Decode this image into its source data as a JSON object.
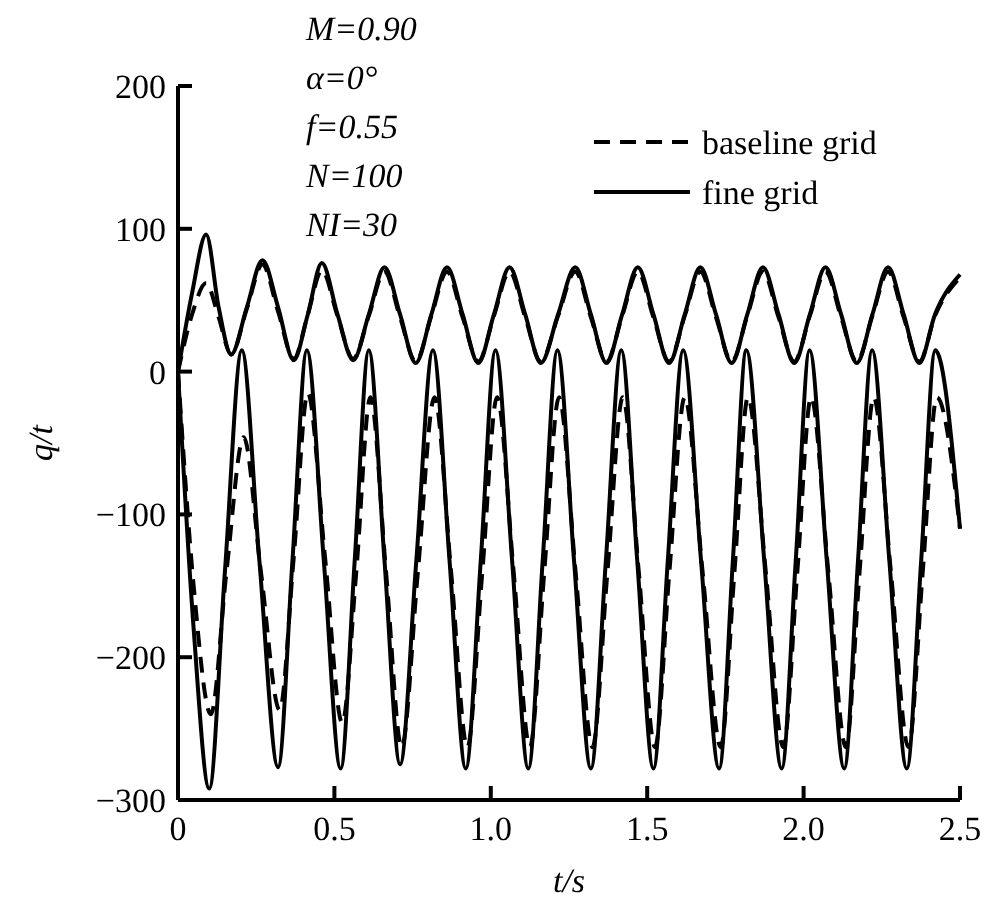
{
  "chart_data": {
    "type": "line",
    "xlabel": "t/s",
    "ylabel": "q/t",
    "xlim": [
      0,
      2.5
    ],
    "ylim": [
      -300,
      200
    ],
    "xticks": [
      0,
      0.5,
      {
        "value": 1,
        "label": "1.0"
      },
      1.5,
      {
        "value": 2,
        "label": "2.0"
      },
      2.5
    ],
    "yticks": [
      -300,
      -200,
      -100,
      0,
      100,
      200
    ],
    "grid": false,
    "legend": "top right",
    "marker": "none",
    "annotations": [
      "M=0.90",
      "α=0°",
      "f=0.55",
      "N=100",
      "NI=30"
    ],
    "series": [
      {
        "name": "baseline grid",
        "color": "#000000",
        "line_style": "dashed",
        "x": [
          0,
          0.045,
          0.09,
          0.13,
          0.17,
          0.22,
          0.27,
          0.32,
          0.37,
          0.415,
          0.46,
          0.51,
          0.56,
          0.61,
          0.66,
          0.71,
          0.76,
          0.81,
          0.86,
          0.91,
          0.96,
          1.01,
          1.06,
          1.11,
          1.16,
          1.215,
          1.27,
          1.32,
          1.37,
          1.42,
          1.47,
          1.52,
          1.57,
          1.62,
          1.67,
          1.72,
          1.77,
          1.82,
          1.87,
          1.92,
          1.97,
          2.02,
          2.07,
          2.12,
          2.17,
          2.22,
          2.27,
          2.32,
          2.37,
          2.42,
          2.5
        ],
        "values": [
          0,
          40,
          62,
          38,
          12,
          44,
          75,
          42,
          9,
          40,
          71,
          39,
          9,
          39,
          70,
          38,
          7,
          39,
          70,
          38,
          7,
          39,
          70,
          38,
          7,
          39,
          70,
          38,
          7,
          39,
          70,
          38,
          7,
          39,
          70,
          38,
          7,
          39,
          70,
          38,
          7,
          39,
          70,
          38,
          7,
          39,
          70,
          38,
          7,
          39,
          66
        ]
      },
      {
        "name": "fine grid",
        "color": "#000000",
        "line_style": "solid",
        "x": [
          0,
          0.045,
          0.09,
          0.13,
          0.17,
          0.22,
          0.27,
          0.32,
          0.37,
          0.415,
          0.46,
          0.51,
          0.56,
          0.61,
          0.66,
          0.71,
          0.76,
          0.81,
          0.86,
          0.91,
          0.96,
          1.01,
          1.06,
          1.11,
          1.16,
          1.215,
          1.27,
          1.32,
          1.37,
          1.42,
          1.47,
          1.52,
          1.57,
          1.62,
          1.67,
          1.72,
          1.77,
          1.82,
          1.87,
          1.92,
          1.97,
          2.02,
          2.07,
          2.12,
          2.17,
          2.22,
          2.27,
          2.32,
          2.37,
          2.42,
          2.5
        ],
        "values": [
          0,
          55,
          96,
          45,
          12,
          45,
          78,
          45,
          8,
          40,
          76,
          40,
          8,
          40,
          73,
          40,
          6,
          40,
          73,
          40,
          6,
          40,
          73,
          40,
          6,
          40,
          73,
          40,
          6,
          40,
          73,
          40,
          6,
          40,
          73,
          40,
          6,
          40,
          73,
          40,
          6,
          40,
          73,
          40,
          6,
          40,
          73,
          40,
          6,
          40,
          68
        ]
      },
      {
        "color": "#000000",
        "line_style": "dashed",
        "x": [
          0,
          0.05,
          0.105,
          0.155,
          0.21,
          0.265,
          0.325,
          0.37,
          0.415,
          0.47,
          0.525,
          0.57,
          0.615,
          0.665,
          0.715,
          0.767,
          0.82,
          0.873,
          0.925,
          0.973,
          1.02,
          1.073,
          1.125,
          1.171,
          1.218,
          1.271,
          1.325,
          1.373,
          1.422,
          1.473,
          1.525,
          1.571,
          1.62,
          1.677,
          1.735,
          1.779,
          1.822,
          1.879,
          1.935,
          1.98,
          2.024,
          2.079,
          2.135,
          2.179,
          2.224,
          2.279,
          2.335,
          2.381,
          2.426,
          2.5
        ],
        "values": [
          0,
          -150,
          -240,
          -140,
          -46,
          -140,
          -237,
          -130,
          -15,
          -130,
          -246,
          -140,
          -18,
          -140,
          -263,
          -140,
          -18,
          -140,
          -263,
          -140,
          -18,
          -140,
          -263,
          -140,
          -18,
          -140,
          -263,
          -140,
          -18,
          -140,
          -263,
          -140,
          -18,
          -140,
          -263,
          -140,
          -18,
          -140,
          -263,
          -140,
          -18,
          -140,
          -263,
          -140,
          -18,
          -140,
          -263,
          -140,
          -18,
          -110
        ]
      },
      {
        "color": "#000000",
        "line_style": "solid",
        "x": [
          0,
          0.05,
          0.1,
          0.15,
          0.204,
          0.26,
          0.32,
          0.366,
          0.412,
          0.466,
          0.52,
          0.565,
          0.61,
          0.66,
          0.71,
          0.762,
          0.815,
          0.868,
          0.92,
          0.968,
          1.015,
          1.068,
          1.12,
          1.166,
          1.213,
          1.266,
          1.32,
          1.368,
          1.417,
          1.468,
          1.52,
          1.566,
          1.615,
          1.672,
          1.73,
          1.774,
          1.817,
          1.874,
          1.93,
          1.975,
          2.019,
          2.074,
          2.13,
          2.174,
          2.219,
          2.274,
          2.33,
          2.376,
          2.421,
          2.5
        ],
        "values": [
          0,
          -180,
          -292,
          -140,
          15,
          -132,
          -277,
          -132,
          15,
          -132,
          -278,
          -132,
          15,
          -132,
          -275,
          -132,
          15,
          -132,
          -278,
          -132,
          15,
          -132,
          -278,
          -132,
          15,
          -132,
          -278,
          -132,
          15,
          -132,
          -278,
          -132,
          15,
          -132,
          -278,
          -132,
          15,
          -132,
          -278,
          -132,
          15,
          -132,
          -278,
          -132,
          15,
          -132,
          -278,
          -132,
          15,
          -110
        ]
      }
    ]
  }
}
